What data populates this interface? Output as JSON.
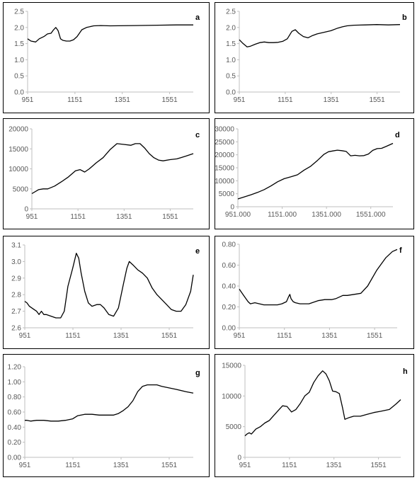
{
  "chart_data": [
    {
      "type": "line",
      "panel_label": "a",
      "ylim": [
        0,
        2.5
      ],
      "y_ticks": [
        "0.0",
        "0.5",
        "1.0",
        "1.5",
        "2.0",
        "2.5"
      ],
      "xlim": [
        951,
        1651
      ],
      "x_ticks": [
        "951",
        "1151",
        "1351",
        "1551"
      ],
      "grid": false,
      "series": [
        {
          "x": [
            951,
            965,
            985,
            1000,
            1020,
            1035,
            1050,
            1060,
            1070,
            1080,
            1090,
            1100,
            1115,
            1130,
            1145,
            1160,
            1180,
            1200,
            1230,
            1260,
            1300,
            1400,
            1500,
            1580,
            1651
          ],
          "y": [
            1.65,
            1.58,
            1.55,
            1.65,
            1.72,
            1.8,
            1.82,
            1.92,
            2.0,
            1.9,
            1.65,
            1.6,
            1.58,
            1.58,
            1.62,
            1.72,
            1.93,
            2.0,
            2.05,
            2.06,
            2.05,
            2.06,
            2.07,
            2.08,
            2.08
          ]
        }
      ]
    },
    {
      "type": "line",
      "panel_label": "b",
      "ylim": [
        0,
        2.5
      ],
      "y_ticks": [
        "0.0",
        "0.5",
        "1.0",
        "1.5",
        "2.0",
        "2.5"
      ],
      "xlim": [
        951,
        1651
      ],
      "x_ticks": [
        "951",
        "1151",
        "1351",
        "1551"
      ],
      "grid": false,
      "series": [
        {
          "x": [
            951,
            965,
            985,
            1000,
            1020,
            1040,
            1060,
            1080,
            1100,
            1120,
            1140,
            1160,
            1180,
            1195,
            1210,
            1230,
            1250,
            1270,
            1290,
            1320,
            1350,
            1380,
            1400,
            1420,
            1450,
            1500,
            1550,
            1600,
            1651
          ],
          "y": [
            1.62,
            1.52,
            1.4,
            1.42,
            1.48,
            1.53,
            1.55,
            1.53,
            1.53,
            1.54,
            1.57,
            1.65,
            1.88,
            1.93,
            1.82,
            1.72,
            1.68,
            1.75,
            1.8,
            1.85,
            1.9,
            1.98,
            2.02,
            2.05,
            2.07,
            2.08,
            2.09,
            2.08,
            2.09
          ]
        }
      ]
    },
    {
      "type": "line",
      "panel_label": "c",
      "ylim": [
        0,
        20000
      ],
      "y_ticks": [
        "0",
        "5000",
        "10000",
        "15000",
        "20000"
      ],
      "xlim": [
        951,
        1651
      ],
      "x_ticks": [
        "951",
        "1151",
        "1351",
        "1551"
      ],
      "grid": false,
      "series": [
        {
          "x": [
            951,
            980,
            1000,
            1020,
            1050,
            1080,
            1110,
            1140,
            1160,
            1180,
            1200,
            1230,
            1260,
            1290,
            1320,
            1350,
            1380,
            1400,
            1420,
            1440,
            1460,
            1480,
            1500,
            1520,
            1550,
            1580,
            1620,
            1651
          ],
          "y": [
            3800,
            4800,
            5000,
            5000,
            5700,
            6800,
            8000,
            9500,
            9800,
            9200,
            10000,
            11500,
            12800,
            14800,
            16300,
            16100,
            15900,
            16300,
            16300,
            15200,
            13800,
            12800,
            12200,
            12000,
            12300,
            12500,
            13200,
            13800
          ]
        }
      ]
    },
    {
      "type": "line",
      "panel_label": "d",
      "ylim": [
        0,
        30000
      ],
      "y_ticks": [
        "0",
        "5000",
        "10000",
        "15000",
        "20000",
        "25000",
        "30000"
      ],
      "xlim": [
        951,
        1651
      ],
      "x_ticks": [
        "951.000",
        "1151.000",
        "1351.000",
        "1551.000"
      ],
      "grid": false,
      "series": [
        {
          "x": [
            951,
            980,
            1010,
            1040,
            1070,
            1100,
            1130,
            1160,
            1190,
            1220,
            1250,
            1280,
            1310,
            1340,
            1360,
            1380,
            1400,
            1420,
            1440,
            1460,
            1480,
            1500,
            1520,
            1540,
            1560,
            1580,
            1600,
            1620,
            1651
          ],
          "y": [
            3000,
            3800,
            4600,
            5500,
            6600,
            8000,
            9600,
            10800,
            11500,
            12300,
            14100,
            15600,
            17800,
            20200,
            21200,
            21500,
            21800,
            21600,
            21300,
            19600,
            19800,
            19600,
            19700,
            20300,
            21700,
            22400,
            22500,
            23200,
            24400
          ]
        }
      ]
    },
    {
      "type": "line",
      "panel_label": "e",
      "ylim": [
        2.6,
        3.1
      ],
      "y_ticks": [
        "2.6",
        "2.7",
        "2.8",
        "2.9",
        "3.0",
        "3.1"
      ],
      "xlim": [
        951,
        1651
      ],
      "x_ticks": [
        "951",
        "1151",
        "1351",
        "1551"
      ],
      "grid": false,
      "series": [
        {
          "x": [
            951,
            960,
            970,
            980,
            990,
            1000,
            1010,
            1020,
            1030,
            1040,
            1060,
            1080,
            1100,
            1115,
            1130,
            1150,
            1165,
            1175,
            1185,
            1200,
            1215,
            1230,
            1250,
            1265,
            1280,
            1300,
            1320,
            1340,
            1360,
            1375,
            1385,
            1400,
            1420,
            1440,
            1460,
            1480,
            1500,
            1520,
            1540,
            1560,
            1580,
            1600,
            1620,
            1640,
            1651
          ],
          "y": [
            2.76,
            2.75,
            2.73,
            2.72,
            2.71,
            2.7,
            2.68,
            2.7,
            2.68,
            2.68,
            2.67,
            2.66,
            2.66,
            2.7,
            2.85,
            2.96,
            3.05,
            3.02,
            2.93,
            2.82,
            2.75,
            2.73,
            2.74,
            2.74,
            2.72,
            2.68,
            2.67,
            2.72,
            2.86,
            2.96,
            3.0,
            2.98,
            2.95,
            2.93,
            2.9,
            2.84,
            2.8,
            2.77,
            2.74,
            2.71,
            2.7,
            2.7,
            2.74,
            2.82,
            2.92
          ]
        }
      ]
    },
    {
      "type": "line",
      "panel_label": "f",
      "ylim": [
        0,
        0.8
      ],
      "y_ticks": [
        "0.00",
        "0.20",
        "0.40",
        "0.60",
        "0.80"
      ],
      "xlim": [
        951,
        1651
      ],
      "x_ticks": [
        "951",
        "1151",
        "1351",
        "1551"
      ],
      "grid": false,
      "series": [
        {
          "x": [
            951,
            970,
            990,
            1000,
            1020,
            1040,
            1060,
            1080,
            1100,
            1120,
            1140,
            1160,
            1170,
            1175,
            1180,
            1190,
            1200,
            1220,
            1260,
            1300,
            1330,
            1360,
            1380,
            1400,
            1410,
            1430,
            1460,
            1490,
            1520,
            1560,
            1600,
            1630,
            1651
          ],
          "y": [
            0.37,
            0.31,
            0.25,
            0.23,
            0.24,
            0.23,
            0.22,
            0.22,
            0.22,
            0.22,
            0.23,
            0.25,
            0.3,
            0.32,
            0.28,
            0.25,
            0.24,
            0.23,
            0.23,
            0.26,
            0.27,
            0.27,
            0.28,
            0.3,
            0.31,
            0.31,
            0.32,
            0.33,
            0.4,
            0.55,
            0.67,
            0.73,
            0.75
          ]
        }
      ]
    },
    {
      "type": "line",
      "panel_label": "g",
      "ylim": [
        0,
        1.2
      ],
      "y_ticks": [
        "0.00",
        "0.20",
        "0.40",
        "0.60",
        "0.80",
        "1.00",
        "1.20"
      ],
      "xlim": [
        951,
        1651
      ],
      "x_ticks": [
        "951",
        "1151",
        "1351",
        "1551"
      ],
      "grid": false,
      "series": [
        {
          "x": [
            951,
            960,
            975,
            1000,
            1030,
            1060,
            1090,
            1120,
            1150,
            1170,
            1200,
            1230,
            1260,
            1290,
            1320,
            1340,
            1360,
            1380,
            1400,
            1420,
            1440,
            1460,
            1480,
            1500,
            1520,
            1550,
            1580,
            1620,
            1651
          ],
          "y": [
            0.49,
            0.49,
            0.48,
            0.49,
            0.49,
            0.48,
            0.48,
            0.49,
            0.51,
            0.55,
            0.57,
            0.57,
            0.56,
            0.56,
            0.56,
            0.58,
            0.62,
            0.67,
            0.75,
            0.87,
            0.94,
            0.96,
            0.96,
            0.96,
            0.94,
            0.92,
            0.9,
            0.87,
            0.85
          ]
        }
      ]
    },
    {
      "type": "line",
      "panel_label": "h",
      "ylim": [
        0,
        15000
      ],
      "y_ticks": [
        "0",
        "5000",
        "10000",
        "15000"
      ],
      "xlim": [
        951,
        1651
      ],
      "x_ticks": [
        "951",
        "1151",
        "1351",
        "1551"
      ],
      "grid": false,
      "series": [
        {
          "x": [
            951,
            960,
            970,
            980,
            990,
            1000,
            1020,
            1040,
            1060,
            1080,
            1100,
            1120,
            1140,
            1160,
            1180,
            1200,
            1220,
            1240,
            1260,
            1280,
            1300,
            1315,
            1330,
            1345,
            1360,
            1375,
            1390,
            1400,
            1420,
            1440,
            1470,
            1500,
            1530,
            1560,
            1600,
            1630,
            1651
          ],
          "y": [
            3500,
            3800,
            4000,
            3800,
            4200,
            4600,
            5000,
            5600,
            6000,
            6800,
            7600,
            8400,
            8300,
            7400,
            7800,
            8800,
            10000,
            10600,
            12200,
            13300,
            14100,
            13600,
            12500,
            10800,
            10700,
            10400,
            8000,
            6200,
            6500,
            6700,
            6700,
            7000,
            7300,
            7500,
            7800,
            8700,
            9400
          ]
        }
      ]
    }
  ]
}
